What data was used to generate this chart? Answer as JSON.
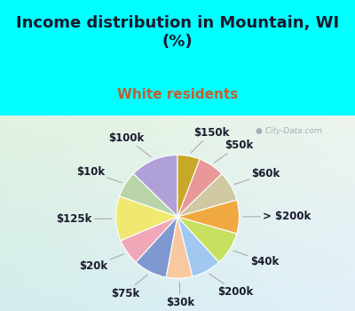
{
  "title": "Income distribution in Mountain, WI\n(%)",
  "subtitle": "White residents",
  "title_color": "#1a1a2e",
  "subtitle_color": "#c06030",
  "bg_cyan": "#00ffff",
  "bg_chart_tl": "#e8f5e8",
  "bg_chart_br": "#c8e8e8",
  "watermark": "City-Data.com",
  "labels": [
    "$100k",
    "$10k",
    "$125k",
    "$20k",
    "$75k",
    "$30k",
    "$200k",
    "$40k",
    "> $200k",
    "$60k",
    "$50k",
    "$150k"
  ],
  "values": [
    13,
    7,
    12,
    7,
    9,
    7,
    8,
    9,
    9,
    8,
    7,
    6
  ],
  "colors": [
    "#b0a0d8",
    "#b8d4a8",
    "#f0e870",
    "#f0a8b8",
    "#8098d0",
    "#f8c8a0",
    "#a0c8f0",
    "#c8e060",
    "#f0a840",
    "#d0c8a0",
    "#e89898",
    "#c8a828"
  ],
  "label_fontsize": 8.5,
  "title_fontsize": 13,
  "subtitle_fontsize": 11
}
